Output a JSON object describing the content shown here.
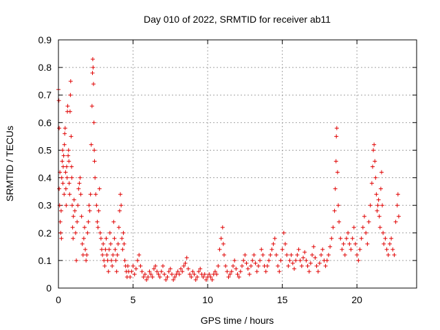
{
  "chart_data": {
    "type": "scatter",
    "title": "Day 010 of 2022, SRMTID for receiver ab11",
    "xlabel": "GPS time / hours",
    "ylabel": "SRMTID / TECUs",
    "xlim": [
      0,
      24
    ],
    "ylim": [
      0,
      0.9
    ],
    "xticks": [
      0,
      5,
      10,
      15,
      20
    ],
    "xtick_labels": [
      "0",
      "5",
      "10",
      "15",
      "20"
    ],
    "yticks": [
      0,
      0.1,
      0.2,
      0.3,
      0.4,
      0.5,
      0.6,
      0.7,
      0.8,
      0.9
    ],
    "ytick_labels": [
      "0",
      "0.1",
      "0.2",
      "0.3",
      "0.4",
      "0.5",
      "0.6",
      "0.7",
      "0.8",
      "0.9"
    ],
    "grid": true,
    "marker": "+",
    "series": [
      {
        "name": "SRMTID",
        "color": "#e00000",
        "points": [
          [
            0.0,
            0.72
          ],
          [
            0.03,
            0.68
          ],
          [
            0.05,
            0.58
          ],
          [
            0.05,
            0.36
          ],
          [
            0.08,
            0.3
          ],
          [
            0.1,
            0.42
          ],
          [
            0.12,
            0.24
          ],
          [
            0.15,
            0.2
          ],
          [
            0.18,
            0.28
          ],
          [
            0.2,
            0.18
          ],
          [
            0.22,
            0.4
          ],
          [
            0.25,
            0.46
          ],
          [
            0.28,
            0.5
          ],
          [
            0.3,
            0.38
          ],
          [
            0.32,
            0.44
          ],
          [
            0.35,
            0.48
          ],
          [
            0.38,
            0.34
          ],
          [
            0.4,
            0.52
          ],
          [
            0.42,
            0.56
          ],
          [
            0.45,
            0.58
          ],
          [
            0.48,
            0.42
          ],
          [
            0.5,
            0.36
          ],
          [
            0.52,
            0.3
          ],
          [
            0.55,
            0.44
          ],
          [
            0.58,
            0.4
          ],
          [
            0.6,
            0.64
          ],
          [
            0.62,
            0.66
          ],
          [
            0.65,
            0.48
          ],
          [
            0.68,
            0.5
          ],
          [
            0.7,
            0.46
          ],
          [
            0.72,
            0.38
          ],
          [
            0.75,
            0.34
          ],
          [
            0.78,
            0.64
          ],
          [
            0.8,
            0.7
          ],
          [
            0.82,
            0.75
          ],
          [
            0.85,
            0.55
          ],
          [
            0.88,
            0.44
          ],
          [
            0.9,
            0.4
          ],
          [
            0.92,
            0.3
          ],
          [
            0.95,
            0.22
          ],
          [
            0.98,
            0.18
          ],
          [
            1.0,
            0.26
          ],
          [
            1.05,
            0.32
          ],
          [
            1.1,
            0.28
          ],
          [
            1.15,
            0.2
          ],
          [
            1.2,
            0.1
          ],
          [
            1.25,
            0.24
          ],
          [
            1.3,
            0.3
          ],
          [
            1.35,
            0.36
          ],
          [
            1.4,
            0.38
          ],
          [
            1.45,
            0.4
          ],
          [
            1.5,
            0.34
          ],
          [
            1.55,
            0.26
          ],
          [
            1.6,
            0.16
          ],
          [
            1.65,
            0.12
          ],
          [
            1.7,
            0.18
          ],
          [
            1.75,
            0.22
          ],
          [
            1.8,
            0.14
          ],
          [
            1.85,
            0.1
          ],
          [
            1.9,
            0.12
          ],
          [
            1.95,
            0.2
          ],
          [
            2.0,
            0.24
          ],
          [
            2.05,
            0.3
          ],
          [
            2.1,
            0.28
          ],
          [
            2.15,
            0.34
          ],
          [
            2.2,
            0.52
          ],
          [
            2.25,
            0.66
          ],
          [
            2.28,
            0.78
          ],
          [
            2.3,
            0.83
          ],
          [
            2.32,
            0.8
          ],
          [
            2.35,
            0.74
          ],
          [
            2.38,
            0.6
          ],
          [
            2.4,
            0.5
          ],
          [
            2.42,
            0.46
          ],
          [
            2.45,
            0.4
          ],
          [
            2.5,
            0.34
          ],
          [
            2.55,
            0.3
          ],
          [
            2.6,
            0.24
          ],
          [
            2.65,
            0.22
          ],
          [
            2.7,
            0.28
          ],
          [
            2.75,
            0.36
          ],
          [
            2.8,
            0.2
          ],
          [
            2.85,
            0.18
          ],
          [
            2.9,
            0.14
          ],
          [
            2.95,
            0.12
          ],
          [
            3.0,
            0.16
          ],
          [
            3.05,
            0.1
          ],
          [
            3.1,
            0.08
          ],
          [
            3.15,
            0.14
          ],
          [
            3.2,
            0.18
          ],
          [
            3.25,
            0.12
          ],
          [
            3.3,
            0.1
          ],
          [
            3.35,
            0.06
          ],
          [
            3.4,
            0.14
          ],
          [
            3.45,
            0.2
          ],
          [
            3.5,
            0.16
          ],
          [
            3.55,
            0.1
          ],
          [
            3.6,
            0.08
          ],
          [
            3.65,
            0.12
          ],
          [
            3.7,
            0.24
          ],
          [
            3.75,
            0.18
          ],
          [
            3.8,
            0.14
          ],
          [
            3.85,
            0.1
          ],
          [
            3.9,
            0.06
          ],
          [
            3.95,
            0.12
          ],
          [
            4.0,
            0.16
          ],
          [
            4.05,
            0.22
          ],
          [
            4.1,
            0.28
          ],
          [
            4.15,
            0.34
          ],
          [
            4.2,
            0.3
          ],
          [
            4.25,
            0.18
          ],
          [
            4.3,
            0.14
          ],
          [
            4.35,
            0.2
          ],
          [
            4.4,
            0.16
          ],
          [
            4.45,
            0.1
          ],
          [
            4.5,
            0.08
          ],
          [
            4.55,
            0.06
          ],
          [
            4.6,
            0.04
          ],
          [
            4.65,
            0.08
          ],
          [
            4.7,
            0.06
          ],
          [
            4.8,
            0.04
          ],
          [
            4.9,
            0.06
          ],
          [
            5.0,
            0.08
          ],
          [
            5.1,
            0.05
          ],
          [
            5.2,
            0.07
          ],
          [
            5.3,
            0.1
          ],
          [
            5.4,
            0.12
          ],
          [
            5.5,
            0.08
          ],
          [
            5.6,
            0.06
          ],
          [
            5.7,
            0.04
          ],
          [
            5.8,
            0.05
          ],
          [
            5.9,
            0.03
          ],
          [
            6.0,
            0.04
          ],
          [
            6.1,
            0.06
          ],
          [
            6.2,
            0.05
          ],
          [
            6.3,
            0.04
          ],
          [
            6.4,
            0.07
          ],
          [
            6.5,
            0.08
          ],
          [
            6.6,
            0.06
          ],
          [
            6.7,
            0.05
          ],
          [
            6.8,
            0.04
          ],
          [
            6.9,
            0.06
          ],
          [
            7.0,
            0.08
          ],
          [
            7.1,
            0.05
          ],
          [
            7.2,
            0.03
          ],
          [
            7.3,
            0.04
          ],
          [
            7.4,
            0.06
          ],
          [
            7.5,
            0.07
          ],
          [
            7.6,
            0.05
          ],
          [
            7.7,
            0.03
          ],
          [
            7.8,
            0.04
          ],
          [
            7.9,
            0.05
          ],
          [
            8.0,
            0.06
          ],
          [
            8.1,
            0.05
          ],
          [
            8.2,
            0.07
          ],
          [
            8.3,
            0.06
          ],
          [
            8.4,
            0.08
          ],
          [
            8.5,
            0.09
          ],
          [
            8.6,
            0.11
          ],
          [
            8.7,
            0.07
          ],
          [
            8.8,
            0.05
          ],
          [
            8.9,
            0.04
          ],
          [
            9.0,
            0.06
          ],
          [
            9.1,
            0.05
          ],
          [
            9.2,
            0.03
          ],
          [
            9.3,
            0.04
          ],
          [
            9.4,
            0.06
          ],
          [
            9.5,
            0.07
          ],
          [
            9.6,
            0.05
          ],
          [
            9.7,
            0.04
          ],
          [
            9.8,
            0.05
          ],
          [
            9.9,
            0.03
          ],
          [
            10.0,
            0.04
          ],
          [
            10.1,
            0.05
          ],
          [
            10.2,
            0.04
          ],
          [
            10.3,
            0.03
          ],
          [
            10.4,
            0.05
          ],
          [
            10.5,
            0.06
          ],
          [
            10.6,
            0.05
          ],
          [
            10.7,
            0.08
          ],
          [
            10.8,
            0.14
          ],
          [
            10.9,
            0.18
          ],
          [
            11.0,
            0.22
          ],
          [
            11.05,
            0.16
          ],
          [
            11.1,
            0.12
          ],
          [
            11.2,
            0.08
          ],
          [
            11.3,
            0.06
          ],
          [
            11.4,
            0.04
          ],
          [
            11.5,
            0.05
          ],
          [
            11.6,
            0.06
          ],
          [
            11.7,
            0.08
          ],
          [
            11.8,
            0.1
          ],
          [
            11.9,
            0.07
          ],
          [
            12.0,
            0.05
          ],
          [
            12.1,
            0.04
          ],
          [
            12.2,
            0.06
          ],
          [
            12.3,
            0.08
          ],
          [
            12.4,
            0.1
          ],
          [
            12.5,
            0.12
          ],
          [
            12.6,
            0.09
          ],
          [
            12.7,
            0.07
          ],
          [
            12.8,
            0.05
          ],
          [
            12.9,
            0.08
          ],
          [
            13.0,
            0.1
          ],
          [
            13.1,
            0.12
          ],
          [
            13.2,
            0.09
          ],
          [
            13.3,
            0.06
          ],
          [
            13.4,
            0.08
          ],
          [
            13.5,
            0.1
          ],
          [
            13.6,
            0.14
          ],
          [
            13.7,
            0.12
          ],
          [
            13.8,
            0.08
          ],
          [
            13.9,
            0.06
          ],
          [
            14.0,
            0.08
          ],
          [
            14.1,
            0.1
          ],
          [
            14.2,
            0.12
          ],
          [
            14.3,
            0.14
          ],
          [
            14.4,
            0.16
          ],
          [
            14.5,
            0.18
          ],
          [
            14.6,
            0.12
          ],
          [
            14.7,
            0.08
          ],
          [
            14.8,
            0.06
          ],
          [
            14.9,
            0.1
          ],
          [
            15.0,
            0.14
          ],
          [
            15.1,
            0.2
          ],
          [
            15.2,
            0.16
          ],
          [
            15.3,
            0.12
          ],
          [
            15.4,
            0.08
          ],
          [
            15.5,
            0.1
          ],
          [
            15.6,
            0.12
          ],
          [
            15.7,
            0.09
          ],
          [
            15.8,
            0.07
          ],
          [
            15.9,
            0.1
          ],
          [
            16.0,
            0.12
          ],
          [
            16.1,
            0.14
          ],
          [
            16.2,
            0.1
          ],
          [
            16.3,
            0.08
          ],
          [
            16.4,
            0.11
          ],
          [
            16.5,
            0.13
          ],
          [
            16.6,
            0.1
          ],
          [
            16.7,
            0.08
          ],
          [
            16.8,
            0.06
          ],
          [
            16.9,
            0.09
          ],
          [
            17.0,
            0.12
          ],
          [
            17.1,
            0.15
          ],
          [
            17.2,
            0.11
          ],
          [
            17.3,
            0.08
          ],
          [
            17.4,
            0.06
          ],
          [
            17.5,
            0.09
          ],
          [
            17.6,
            0.12
          ],
          [
            17.7,
            0.14
          ],
          [
            17.8,
            0.1
          ],
          [
            17.9,
            0.08
          ],
          [
            18.0,
            0.1
          ],
          [
            18.1,
            0.12
          ],
          [
            18.2,
            0.15
          ],
          [
            18.3,
            0.18
          ],
          [
            18.4,
            0.22
          ],
          [
            18.5,
            0.28
          ],
          [
            18.55,
            0.36
          ],
          [
            18.6,
            0.46
          ],
          [
            18.62,
            0.55
          ],
          [
            18.65,
            0.58
          ],
          [
            18.7,
            0.42
          ],
          [
            18.75,
            0.3
          ],
          [
            18.8,
            0.24
          ],
          [
            18.9,
            0.18
          ],
          [
            19.0,
            0.14
          ],
          [
            19.1,
            0.16
          ],
          [
            19.2,
            0.12
          ],
          [
            19.3,
            0.18
          ],
          [
            19.4,
            0.2
          ],
          [
            19.5,
            0.16
          ],
          [
            19.6,
            0.14
          ],
          [
            19.7,
            0.18
          ],
          [
            19.8,
            0.22
          ],
          [
            19.9,
            0.16
          ],
          [
            20.0,
            0.12
          ],
          [
            20.1,
            0.1
          ],
          [
            20.2,
            0.14
          ],
          [
            20.3,
            0.18
          ],
          [
            20.4,
            0.22
          ],
          [
            20.5,
            0.26
          ],
          [
            20.6,
            0.2
          ],
          [
            20.7,
            0.16
          ],
          [
            20.8,
            0.24
          ],
          [
            20.9,
            0.3
          ],
          [
            21.0,
            0.38
          ],
          [
            21.05,
            0.44
          ],
          [
            21.1,
            0.5
          ],
          [
            21.15,
            0.52
          ],
          [
            21.2,
            0.46
          ],
          [
            21.25,
            0.4
          ],
          [
            21.3,
            0.34
          ],
          [
            21.35,
            0.28
          ],
          [
            21.4,
            0.3
          ],
          [
            21.45,
            0.32
          ],
          [
            21.5,
            0.26
          ],
          [
            21.55,
            0.22
          ],
          [
            21.6,
            0.36
          ],
          [
            21.65,
            0.42
          ],
          [
            21.7,
            0.3
          ],
          [
            21.75,
            0.2
          ],
          [
            21.8,
            0.16
          ],
          [
            21.9,
            0.18
          ],
          [
            22.0,
            0.14
          ],
          [
            22.1,
            0.12
          ],
          [
            22.2,
            0.16
          ],
          [
            22.3,
            0.18
          ],
          [
            22.4,
            0.14
          ],
          [
            22.5,
            0.12
          ],
          [
            22.6,
            0.24
          ],
          [
            22.7,
            0.3
          ],
          [
            22.75,
            0.34
          ],
          [
            22.8,
            0.26
          ]
        ]
      }
    ]
  }
}
